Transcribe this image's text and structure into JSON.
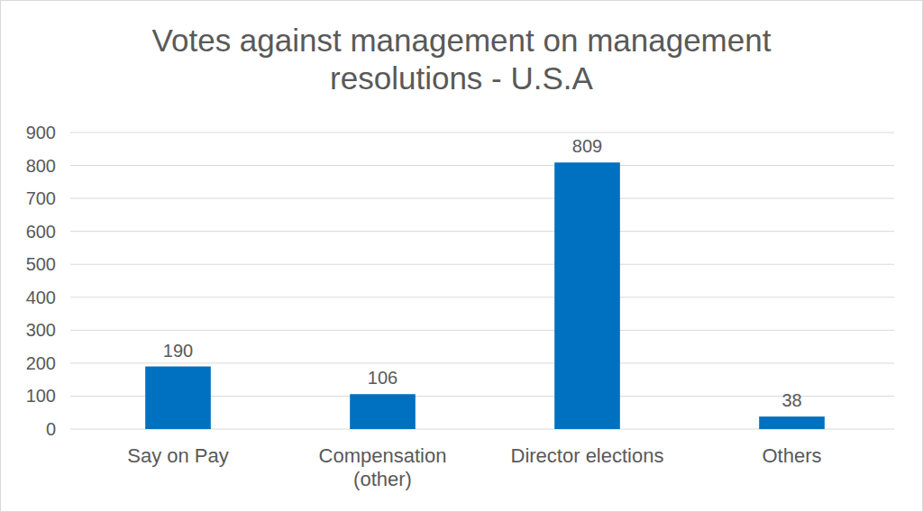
{
  "chart_data": {
    "type": "bar",
    "title": "Votes against management on management resolutions - U.S.A",
    "categories": [
      "Say on Pay",
      "Compensation (other)",
      "Director elections",
      "Others"
    ],
    "values": [
      190,
      106,
      809,
      38
    ],
    "color": "#0070c0",
    "ylim": [
      0,
      900
    ],
    "yticks": [
      0,
      100,
      200,
      300,
      400,
      500,
      600,
      700,
      800,
      900
    ],
    "grid": true,
    "data_labels": true
  }
}
